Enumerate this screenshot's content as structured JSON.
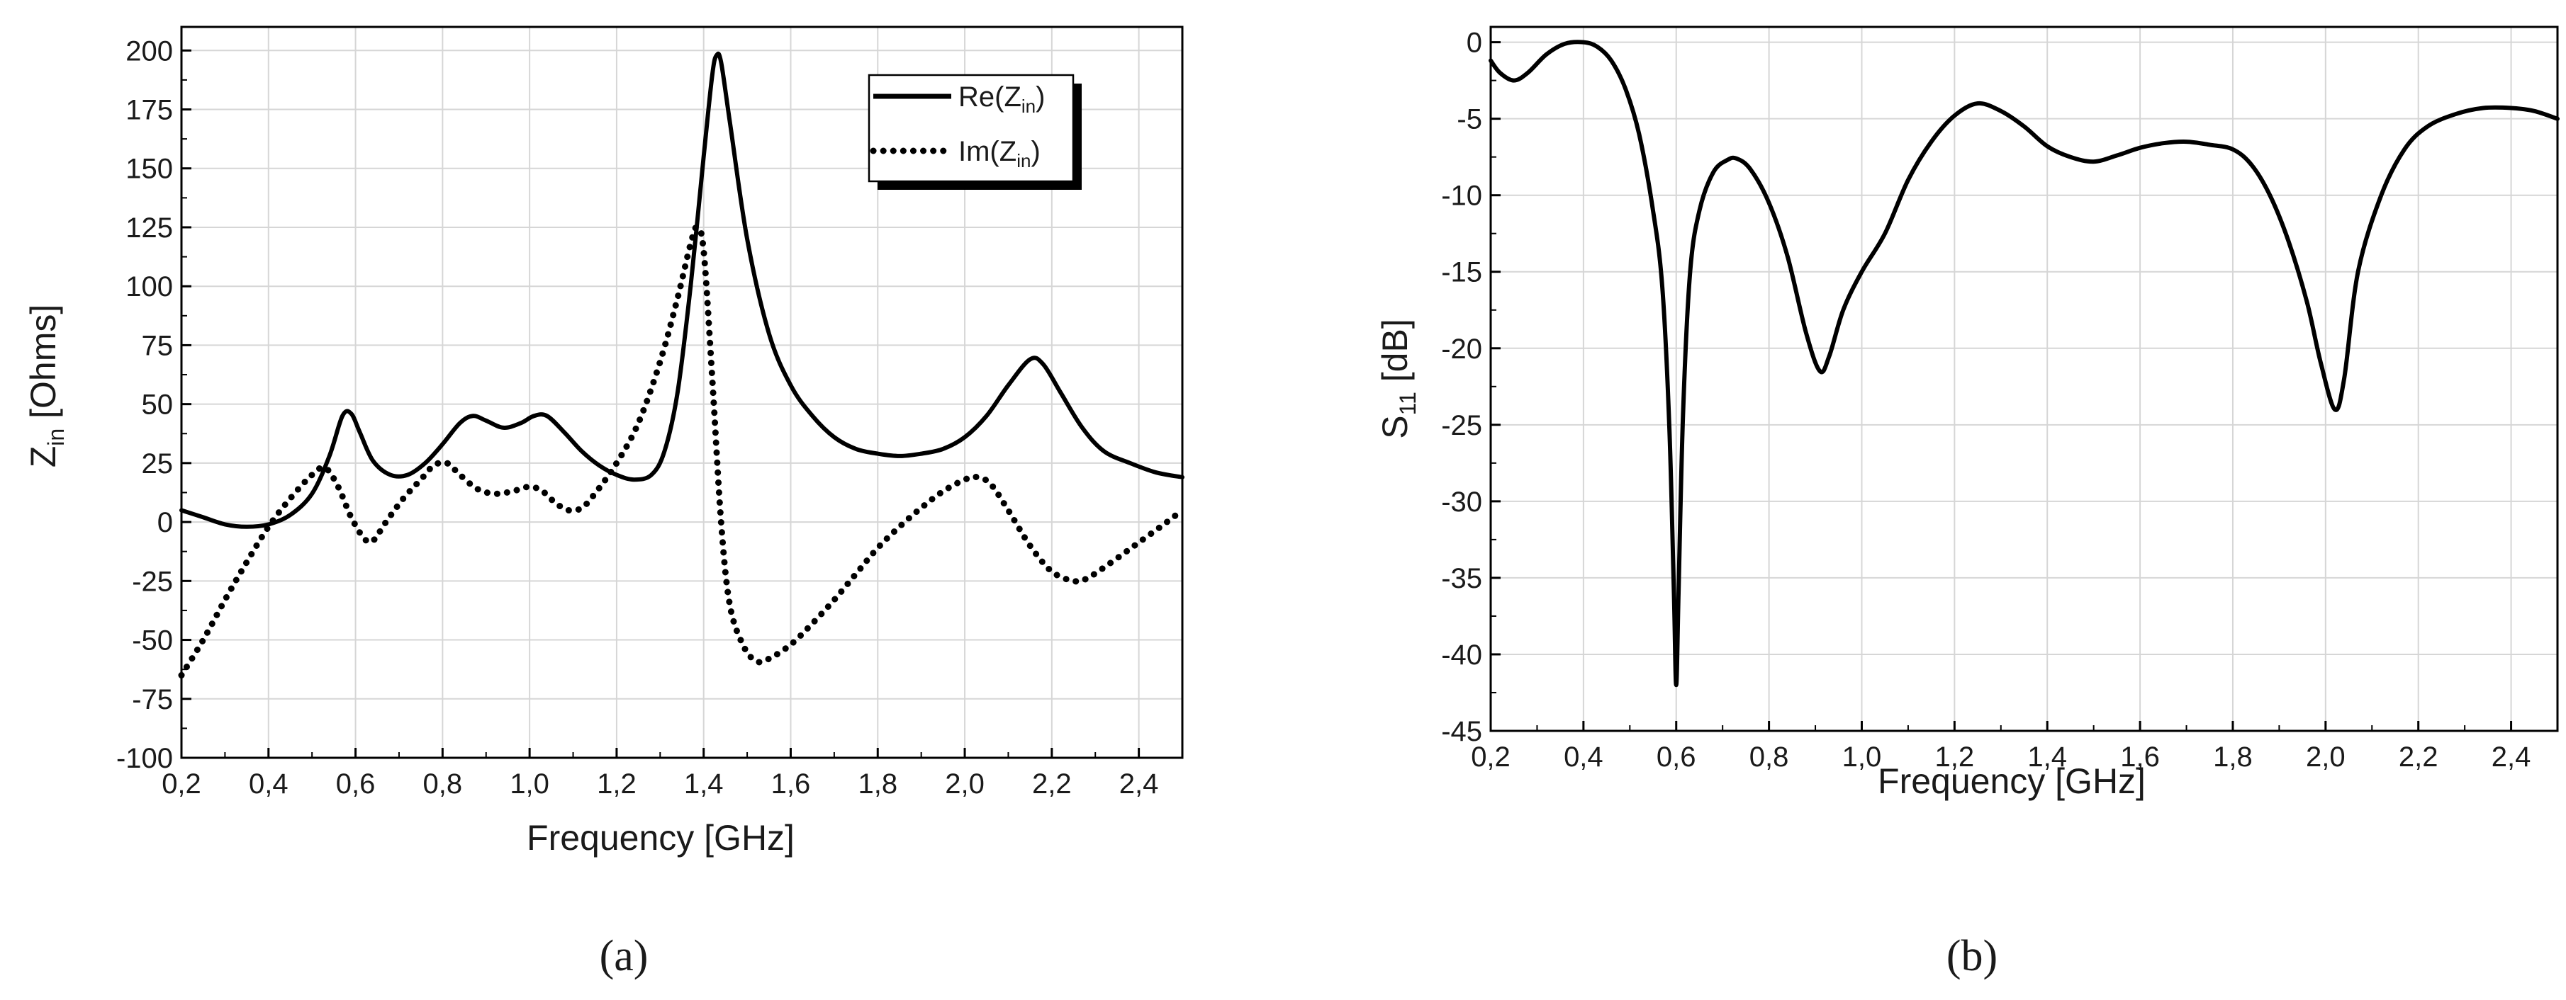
{
  "chart_data": [
    {
      "type": "line",
      "xlabel": "Frequency [GHz]",
      "ylabel_main": "Z",
      "ylabel_sub": "in",
      "ylabel_rest": " [Ohms]",
      "xlim": [
        0.2,
        2.5
      ],
      "ylim": [
        -100,
        210
      ],
      "xticks": [
        "0,2",
        "0,4",
        "0,6",
        "0,8",
        "1,0",
        "1,2",
        "1,4",
        "1,6",
        "1,8",
        "2,0",
        "2,2",
        "2,4"
      ],
      "yticks": [
        "-100",
        "-75",
        "-50",
        "-25",
        "0",
        "25",
        "50",
        "75",
        "100",
        "125",
        "150",
        "175",
        "200"
      ],
      "grid": true,
      "legend": "top-right",
      "series": [
        {
          "name_main": "Re(Z",
          "name_sub": "in",
          "name_end": ")",
          "style": "solid",
          "points": [
            [
              0.2,
              5
            ],
            [
              0.25,
              2
            ],
            [
              0.3,
              -1
            ],
            [
              0.35,
              -2
            ],
            [
              0.4,
              -1
            ],
            [
              0.45,
              3
            ],
            [
              0.5,
              12
            ],
            [
              0.54,
              28
            ],
            [
              0.57,
              45
            ],
            [
              0.59,
              46
            ],
            [
              0.61,
              38
            ],
            [
              0.64,
              26
            ],
            [
              0.68,
              20
            ],
            [
              0.72,
              20
            ],
            [
              0.76,
              25
            ],
            [
              0.8,
              33
            ],
            [
              0.84,
              42
            ],
            [
              0.87,
              45
            ],
            [
              0.9,
              43
            ],
            [
              0.94,
              40
            ],
            [
              0.98,
              42
            ],
            [
              1.01,
              45
            ],
            [
              1.04,
              45
            ],
            [
              1.08,
              38
            ],
            [
              1.12,
              30
            ],
            [
              1.16,
              24
            ],
            [
              1.2,
              20
            ],
            [
              1.24,
              18
            ],
            [
              1.28,
              20
            ],
            [
              1.31,
              30
            ],
            [
              1.34,
              55
            ],
            [
              1.37,
              100
            ],
            [
              1.4,
              155
            ],
            [
              1.42,
              190
            ],
            [
              1.43,
              198
            ],
            [
              1.44,
              195
            ],
            [
              1.46,
              170
            ],
            [
              1.5,
              120
            ],
            [
              1.55,
              80
            ],
            [
              1.6,
              58
            ],
            [
              1.65,
              45
            ],
            [
              1.7,
              36
            ],
            [
              1.75,
              31
            ],
            [
              1.8,
              29
            ],
            [
              1.85,
              28
            ],
            [
              1.9,
              29
            ],
            [
              1.95,
              31
            ],
            [
              2.0,
              36
            ],
            [
              2.05,
              45
            ],
            [
              2.1,
              58
            ],
            [
              2.15,
              69
            ],
            [
              2.18,
              67
            ],
            [
              2.22,
              55
            ],
            [
              2.27,
              40
            ],
            [
              2.32,
              30
            ],
            [
              2.38,
              25
            ],
            [
              2.44,
              21
            ],
            [
              2.5,
              19
            ]
          ]
        },
        {
          "name_main": "Im(Z",
          "name_sub": "in",
          "name_end": ")",
          "style": "dotted",
          "points": [
            [
              0.2,
              -65
            ],
            [
              0.25,
              -50
            ],
            [
              0.3,
              -33
            ],
            [
              0.35,
              -17
            ],
            [
              0.4,
              -2
            ],
            [
              0.45,
              10
            ],
            [
              0.5,
              20
            ],
            [
              0.53,
              23
            ],
            [
              0.56,
              15
            ],
            [
              0.59,
              2
            ],
            [
              0.62,
              -7
            ],
            [
              0.64,
              -8
            ],
            [
              0.67,
              0
            ],
            [
              0.71,
              10
            ],
            [
              0.75,
              18
            ],
            [
              0.78,
              24
            ],
            [
              0.81,
              25
            ],
            [
              0.84,
              20
            ],
            [
              0.88,
              14
            ],
            [
              0.92,
              12
            ],
            [
              0.96,
              13
            ],
            [
              1.0,
              15
            ],
            [
              1.03,
              13
            ],
            [
              1.06,
              8
            ],
            [
              1.09,
              5
            ],
            [
              1.12,
              6
            ],
            [
              1.15,
              12
            ],
            [
              1.2,
              25
            ],
            [
              1.25,
              42
            ],
            [
              1.3,
              68
            ],
            [
              1.34,
              95
            ],
            [
              1.37,
              118
            ],
            [
              1.385,
              125
            ],
            [
              1.4,
              115
            ],
            [
              1.42,
              60
            ],
            [
              1.44,
              0
            ],
            [
              1.46,
              -35
            ],
            [
              1.49,
              -52
            ],
            [
              1.52,
              -59
            ],
            [
              1.55,
              -58
            ],
            [
              1.6,
              -52
            ],
            [
              1.65,
              -43
            ],
            [
              1.7,
              -33
            ],
            [
              1.75,
              -22
            ],
            [
              1.8,
              -11
            ],
            [
              1.85,
              -2
            ],
            [
              1.9,
              6
            ],
            [
              1.95,
              13
            ],
            [
              2.0,
              18
            ],
            [
              2.03,
              19
            ],
            [
              2.06,
              16
            ],
            [
              2.1,
              5
            ],
            [
              2.15,
              -10
            ],
            [
              2.2,
              -21
            ],
            [
              2.25,
              -25
            ],
            [
              2.28,
              -24
            ],
            [
              2.33,
              -18
            ],
            [
              2.39,
              -10
            ],
            [
              2.45,
              -2
            ],
            [
              2.5,
              5
            ]
          ]
        }
      ]
    },
    {
      "type": "line",
      "xlabel": "Frequency [GHz]",
      "ylabel_main": "S",
      "ylabel_sub": "11",
      "ylabel_rest": " [dB]",
      "xlim": [
        0.2,
        2.5
      ],
      "ylim": [
        -45,
        1
      ],
      "xticks": [
        "0,2",
        "0,4",
        "0,6",
        "0,8",
        "1,0",
        "1,2",
        "1,4",
        "1,6",
        "1,8",
        "2,0",
        "2,2",
        "2,4"
      ],
      "yticks": [
        "-45",
        "-40",
        "-35",
        "-30",
        "-25",
        "-20",
        "-15",
        "-10",
        "-5",
        "0"
      ],
      "grid": true,
      "series": [
        {
          "style": "solid",
          "points": [
            [
              0.2,
              -1.2
            ],
            [
              0.22,
              -2.0
            ],
            [
              0.25,
              -2.5
            ],
            [
              0.28,
              -2.0
            ],
            [
              0.32,
              -0.8
            ],
            [
              0.36,
              -0.1
            ],
            [
              0.4,
              0
            ],
            [
              0.43,
              -0.3
            ],
            [
              0.46,
              -1.2
            ],
            [
              0.49,
              -3
            ],
            [
              0.52,
              -6
            ],
            [
              0.55,
              -11
            ],
            [
              0.57,
              -16
            ],
            [
              0.585,
              -25
            ],
            [
              0.595,
              -36
            ],
            [
              0.6,
              -42
            ],
            [
              0.605,
              -36
            ],
            [
              0.615,
              -24
            ],
            [
              0.63,
              -15
            ],
            [
              0.65,
              -11
            ],
            [
              0.68,
              -8.5
            ],
            [
              0.71,
              -7.7
            ],
            [
              0.73,
              -7.6
            ],
            [
              0.76,
              -8.3
            ],
            [
              0.8,
              -10.5
            ],
            [
              0.84,
              -14
            ],
            [
              0.88,
              -19
            ],
            [
              0.91,
              -21.5
            ],
            [
              0.93,
              -20.5
            ],
            [
              0.96,
              -17.5
            ],
            [
              1.0,
              -15
            ],
            [
              1.05,
              -12.5
            ],
            [
              1.1,
              -9
            ],
            [
              1.15,
              -6.5
            ],
            [
              1.2,
              -4.8
            ],
            [
              1.25,
              -4.0
            ],
            [
              1.3,
              -4.5
            ],
            [
              1.35,
              -5.5
            ],
            [
              1.4,
              -6.8
            ],
            [
              1.45,
              -7.5
            ],
            [
              1.5,
              -7.8
            ],
            [
              1.55,
              -7.4
            ],
            [
              1.6,
              -6.9
            ],
            [
              1.65,
              -6.6
            ],
            [
              1.7,
              -6.5
            ],
            [
              1.75,
              -6.7
            ],
            [
              1.8,
              -7.0
            ],
            [
              1.84,
              -8
            ],
            [
              1.88,
              -10
            ],
            [
              1.92,
              -13
            ],
            [
              1.96,
              -17
            ],
            [
              1.99,
              -21
            ],
            [
              2.02,
              -24
            ],
            [
              2.04,
              -22
            ],
            [
              2.07,
              -15
            ],
            [
              2.12,
              -10
            ],
            [
              2.17,
              -7
            ],
            [
              2.22,
              -5.5
            ],
            [
              2.28,
              -4.7
            ],
            [
              2.34,
              -4.3
            ],
            [
              2.4,
              -4.3
            ],
            [
              2.45,
              -4.5
            ],
            [
              2.5,
              -5.0
            ]
          ]
        }
      ]
    }
  ],
  "captions": [
    "(a)",
    "(b)"
  ]
}
